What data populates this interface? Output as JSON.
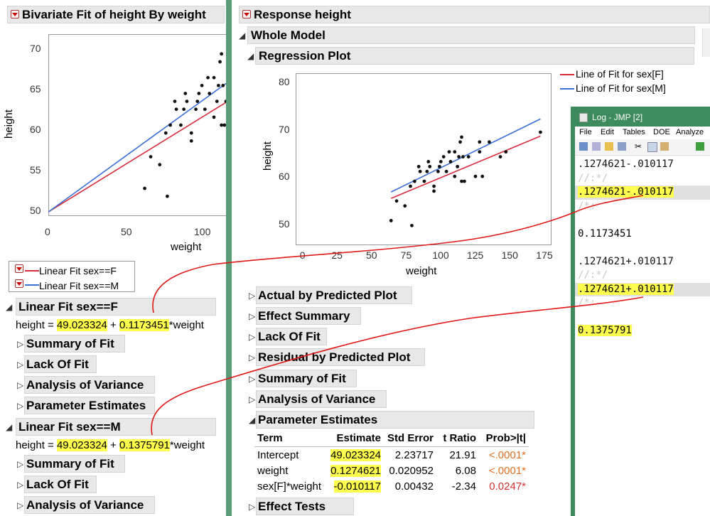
{
  "left": {
    "title": "Bivariate Fit of height By weight",
    "yaxis_label": "height",
    "xaxis_label": "weight",
    "ytick_labels": [
      "70",
      "65",
      "60",
      "55",
      "50"
    ],
    "xtick_labels": [
      "0",
      "50",
      "100"
    ],
    "legend": [
      {
        "label": "Linear Fit sex==F",
        "color": "#d62c3b"
      },
      {
        "label": "Linear Fit sex==M",
        "color": "#3b6fd6"
      }
    ],
    "fitF": {
      "title": "Linear Fit sex==F",
      "eq_prefix": "height = ",
      "intercept": "49.023324",
      "plus": " + ",
      "slope": "0.1173451",
      "eq_suffix": "*weight",
      "subs": [
        "Summary of Fit",
        "Lack Of Fit",
        "Analysis of Variance",
        "Parameter Estimates"
      ]
    },
    "fitM": {
      "title": "Linear Fit sex==M",
      "eq_prefix": "height = ",
      "intercept": "49.023324",
      "plus": " + ",
      "slope": "0.1375791",
      "eq_suffix": "*weight",
      "subs": [
        "Summary of Fit",
        "Lack Of Fit",
        "Analysis of Variance"
      ]
    }
  },
  "middle": {
    "response_title": "Response height",
    "whole_model": "Whole Model",
    "regression_plot": "Regression Plot",
    "yaxis_label": "height",
    "xaxis_label": "weight",
    "ytick_labels": [
      "80",
      "70",
      "60",
      "50"
    ],
    "xtick_labels": [
      "0",
      "25",
      "50",
      "75",
      "100",
      "125",
      "150",
      "175"
    ],
    "legend": [
      {
        "label": "Line of Fit for sex[F]",
        "color": "#d62c3b"
      },
      {
        "label": "Line of Fit for sex[M]",
        "color": "#3b6fd6"
      }
    ],
    "collapsed_sections": [
      "Actual by Predicted Plot",
      "Effect Summary",
      "Lack Of Fit",
      "Residual by Predicted Plot",
      "Summary of Fit",
      "Analysis of Variance"
    ],
    "param_estimates": {
      "title": "Parameter Estimates",
      "headers": [
        "Term",
        "Estimate",
        "Std Error",
        "t Ratio",
        "Prob>|t|"
      ],
      "rows": [
        [
          "Intercept",
          "49.023324",
          "2.23717",
          "21.91",
          "<.0001*"
        ],
        [
          "weight",
          "0.1274621",
          "0.020952",
          "6.08",
          "<.0001*"
        ],
        [
          "sex[F]*weight",
          "-0.010117",
          "0.00432",
          "-2.34",
          "0.0247*"
        ]
      ]
    },
    "effect_tests": "Effect Tests"
  },
  "log": {
    "title": "Log - JMP [2]",
    "menu": [
      "File",
      "Edit",
      "Tables",
      "DOE",
      "Analyze"
    ],
    "lines": [
      ".1274621-.010117",
      "//:*/",
      ".1274621-.010117",
      "/*:",
      "",
      "0.1173451",
      "",
      ".1274621+.010117",
      "//:*/",
      ".1274621+.010117",
      "/*:",
      "",
      "0.1375791"
    ]
  },
  "chart_data": [
    {
      "type": "scatter",
      "title": "",
      "xlabel": "weight",
      "ylabel": "height",
      "xlim": [
        0,
        118
      ],
      "ylim": [
        48.5,
        71.5
      ],
      "grid": false,
      "points": [
        [
          64,
          52
        ],
        [
          68,
          56
        ],
        [
          74,
          55
        ],
        [
          79,
          51
        ],
        [
          78,
          59
        ],
        [
          81,
          60
        ],
        [
          85,
          62
        ],
        [
          84,
          63
        ],
        [
          88,
          60
        ],
        [
          90,
          62
        ],
        [
          91,
          64
        ],
        [
          92,
          63
        ],
        [
          95,
          59
        ],
        [
          95,
          58
        ],
        [
          98,
          62
        ],
        [
          99,
          63
        ],
        [
          100,
          64
        ],
        [
          102,
          65
        ],
        [
          104,
          62
        ],
        [
          106,
          66
        ],
        [
          107,
          64
        ],
        [
          110,
          61
        ],
        [
          110,
          66
        ],
        [
          112,
          63
        ],
        [
          113,
          65
        ],
        [
          114,
          68
        ],
        [
          115,
          69
        ],
        [
          115,
          60
        ],
        [
          116,
          65
        ],
        [
          117,
          60
        ],
        [
          118,
          63
        ]
      ],
      "series": [
        {
          "name": "Linear Fit sex==F",
          "intercept": 49.023324,
          "slope": 0.1173451,
          "color": "#d62c3b"
        },
        {
          "name": "Linear Fit sex==M",
          "intercept": 49.023324,
          "slope": 0.1375791,
          "color": "#3b6fd6"
        }
      ]
    },
    {
      "type": "scatter",
      "title": "",
      "xlabel": "weight",
      "ylabel": "height",
      "xlim": [
        -5,
        180
      ],
      "ylim": [
        47,
        82
      ],
      "grid": false,
      "points": [
        [
          64,
          52
        ],
        [
          68,
          56
        ],
        [
          74,
          55
        ],
        [
          79,
          51
        ],
        [
          78,
          59
        ],
        [
          81,
          60
        ],
        [
          85,
          62
        ],
        [
          84,
          63
        ],
        [
          88,
          60
        ],
        [
          90,
          62
        ],
        [
          91,
          64
        ],
        [
          92,
          63
        ],
        [
          95,
          59
        ],
        [
          95,
          58
        ],
        [
          98,
          62
        ],
        [
          99,
          63
        ],
        [
          100,
          64
        ],
        [
          102,
          65
        ],
        [
          104,
          62
        ],
        [
          106,
          66
        ],
        [
          107,
          64
        ],
        [
          110,
          61
        ],
        [
          110,
          66
        ],
        [
          112,
          63
        ],
        [
          113,
          65
        ],
        [
          114,
          68
        ],
        [
          115,
          69
        ],
        [
          115,
          60
        ],
        [
          116,
          65
        ],
        [
          117,
          60
        ],
        [
          120,
          65
        ],
        [
          125,
          61
        ],
        [
          128,
          68
        ],
        [
          128,
          66
        ],
        [
          130,
          61
        ],
        [
          135,
          68
        ],
        [
          143,
          65
        ],
        [
          147,
          66
        ],
        [
          172,
          70
        ]
      ],
      "series": [
        {
          "name": "Line of Fit for sex[F]",
          "x_range": [
            64,
            172
          ],
          "intercept": 49.023324,
          "slope": 0.1173451,
          "color": "#d62c3b"
        },
        {
          "name": "Line of Fit for sex[M]",
          "x_range": [
            64,
            172
          ],
          "intercept": 49.023324,
          "slope": 0.1375791,
          "color": "#3b6fd6"
        }
      ]
    }
  ]
}
